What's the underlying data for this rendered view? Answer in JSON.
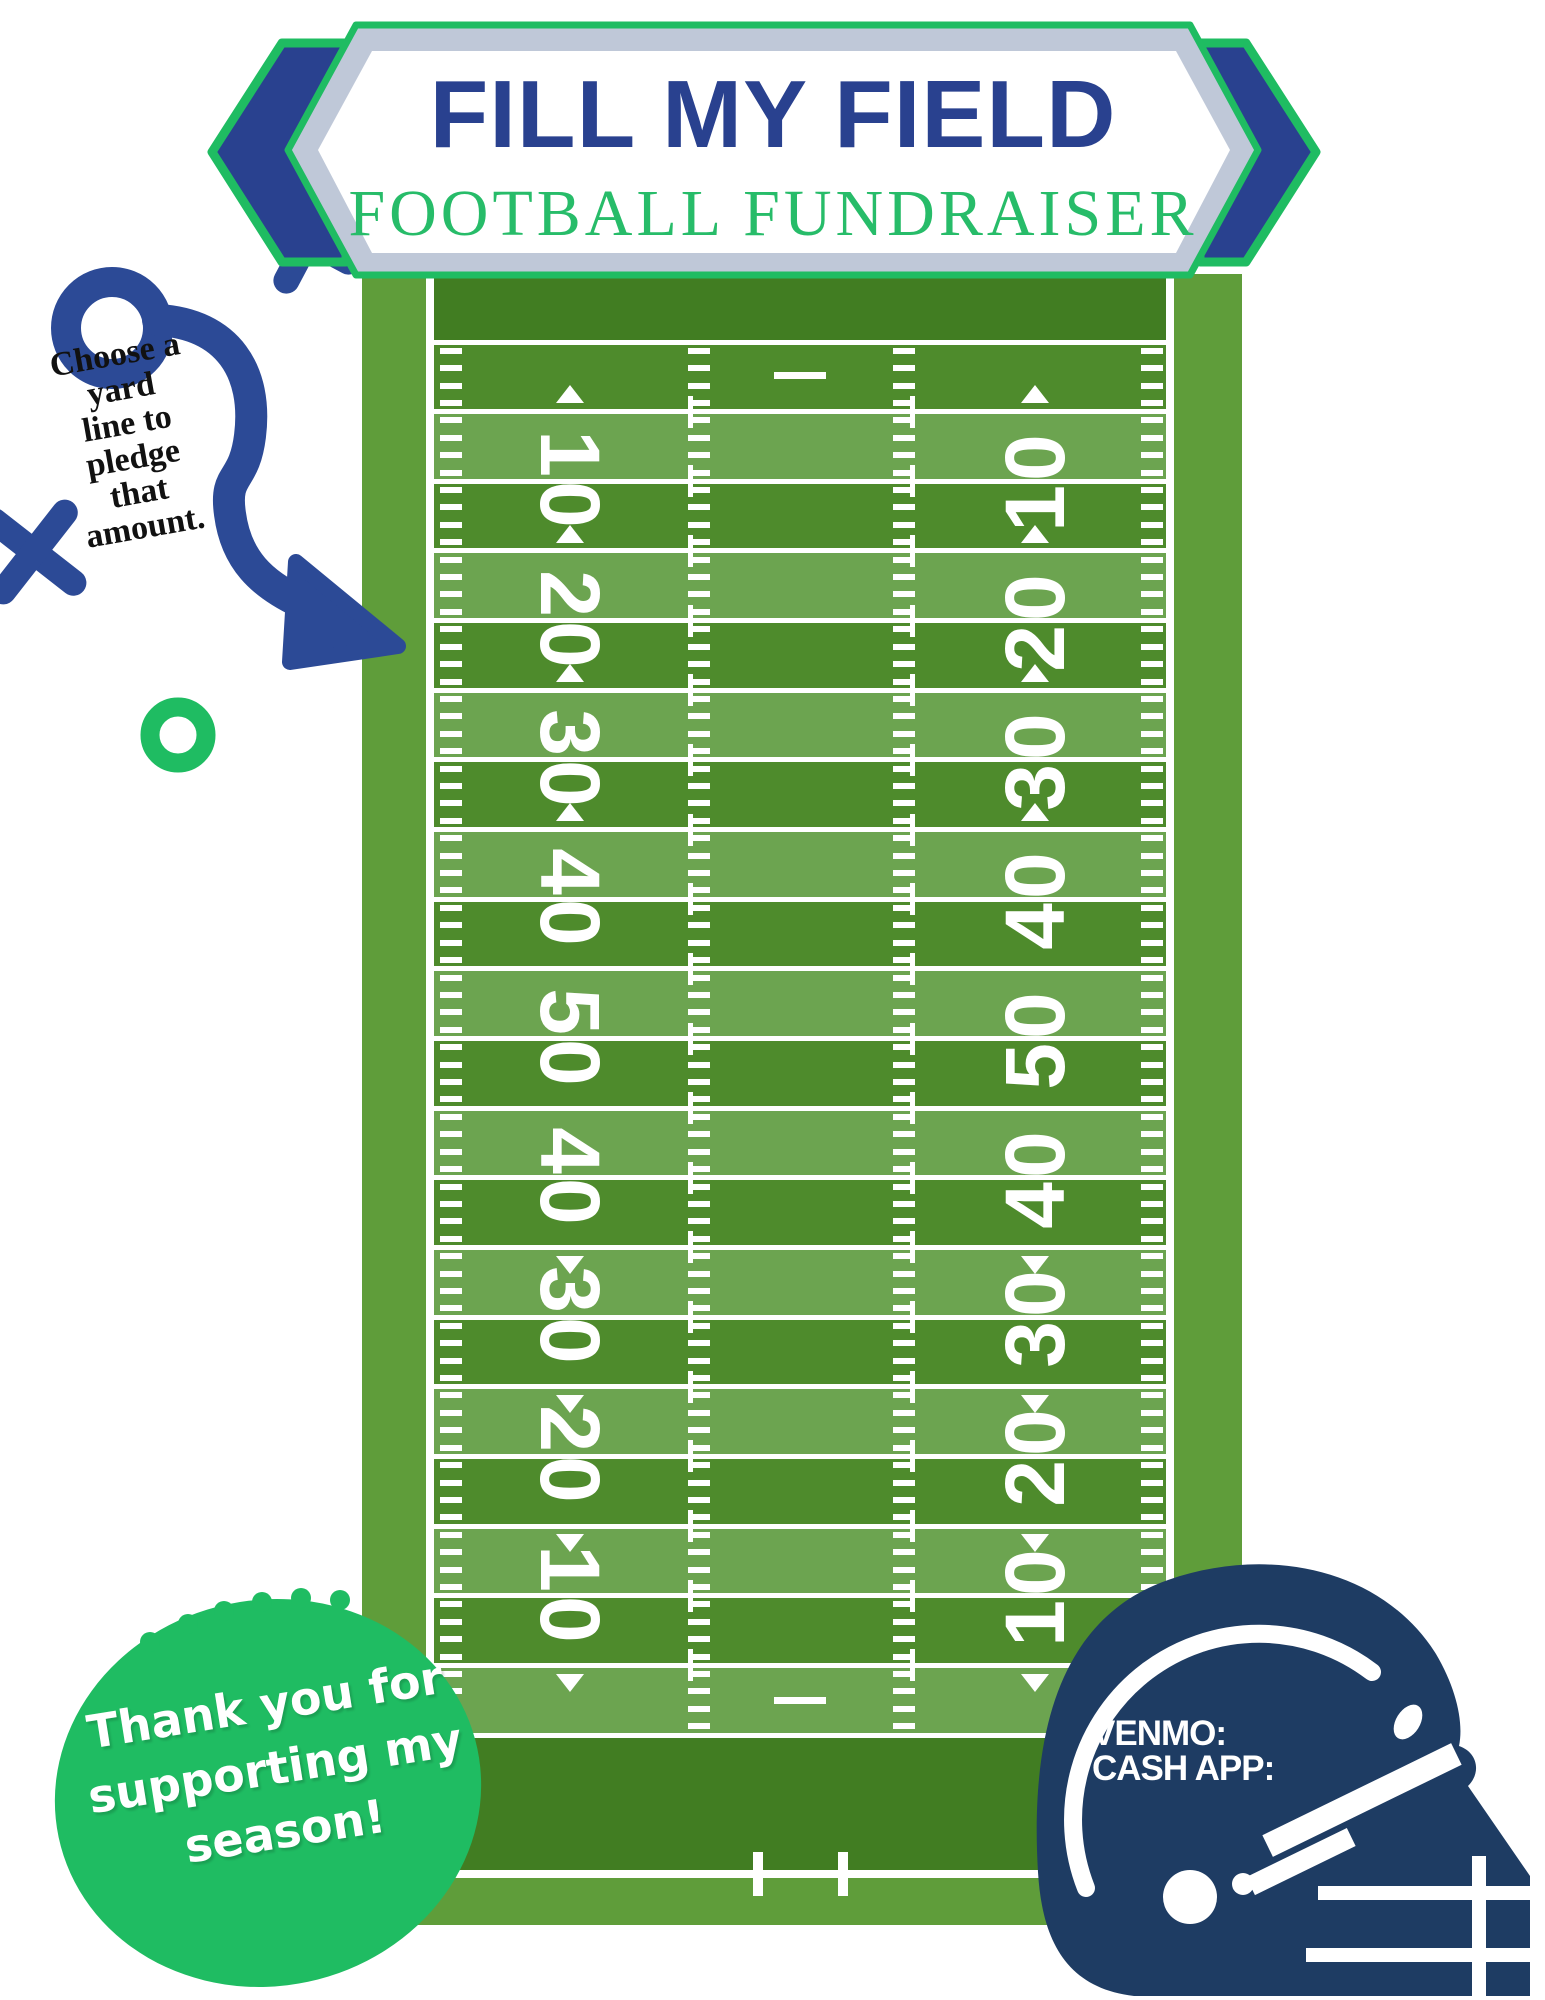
{
  "banner": {
    "title": "FILL MY FIELD",
    "subtitle": "FOOTBALL FUNDRAISER"
  },
  "instruction": {
    "full_text": "Choose a yard line to pledge that amount.",
    "lines": [
      "Choose a",
      "yard",
      "line to",
      "pledge",
      "that",
      "amount."
    ]
  },
  "field": {
    "left_numbers": [
      "10",
      "20",
      "30",
      "40",
      "50",
      "40",
      "30",
      "20",
      "10"
    ],
    "right_numbers": [
      "10",
      "20",
      "30",
      "40",
      "50",
      "40",
      "30",
      "20",
      "10"
    ]
  },
  "football_message": {
    "full_text": "Thank you for supporting my season!",
    "lines": [
      "Thank you for",
      "supporting my",
      "season!"
    ]
  },
  "helmet": {
    "payment_labels": [
      "VENMO:",
      "CASH APP:"
    ]
  },
  "colors": {
    "title_navy": "#29418f",
    "diagram_navy": "#2c4a96",
    "helmet_navy": "#1e3c63",
    "accent_green": "#1fbc62",
    "silver_band": "#bfc8d8",
    "field_border": "#5f9d3a",
    "stripe_dark": "#4e8b2c",
    "stripe_light": "#6ca450",
    "end_zone": "#417d22",
    "line_white": "#ffffff"
  }
}
